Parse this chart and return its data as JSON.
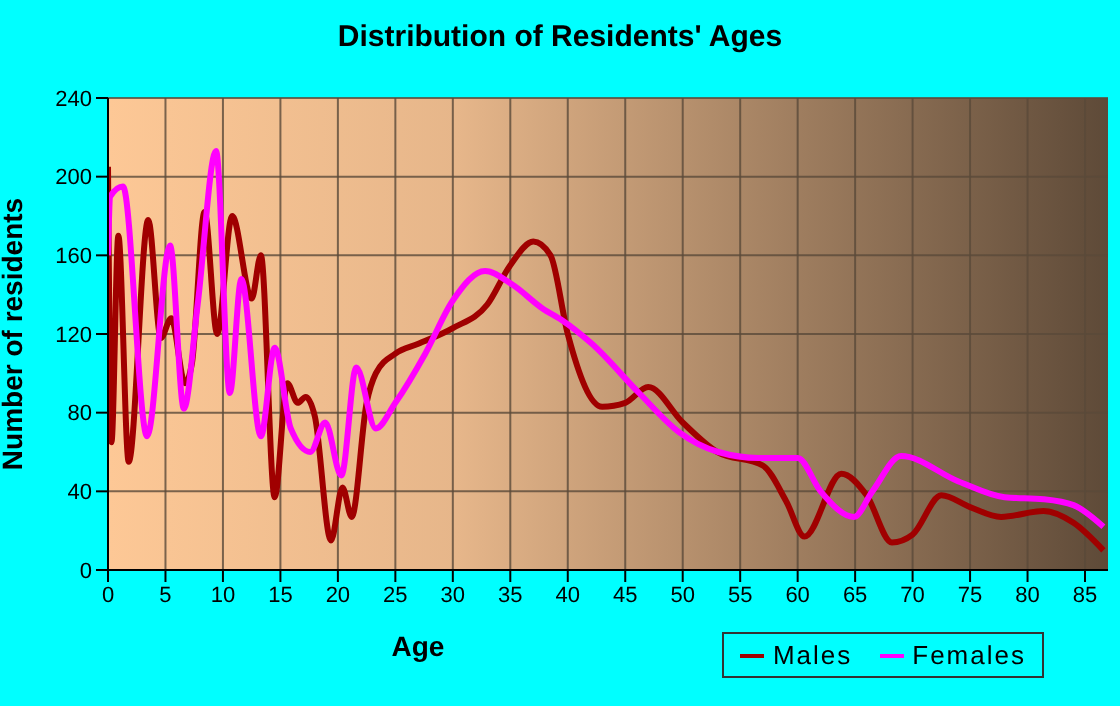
{
  "chart_data": {
    "type": "line",
    "title": "Distribution of Residents' Ages",
    "xlabel": "Age",
    "ylabel": "Number of residents",
    "xlim": [
      0,
      87
    ],
    "xticks": [
      0,
      5,
      10,
      15,
      20,
      25,
      30,
      35,
      40,
      45,
      50,
      55,
      60,
      65,
      70,
      75,
      80,
      85
    ],
    "ylim": [
      0,
      240
    ],
    "yticks": [
      0,
      40,
      80,
      120,
      160,
      200,
      240
    ],
    "grid": true,
    "legend": "bottom right",
    "marker": "none",
    "line_style": "solid",
    "series": [
      {
        "name": "Males",
        "color": "#a00000",
        "x": [
          0,
          0.3,
          0.9,
          1.8,
          3.5,
          4.6,
          5.5,
          6.7,
          7.3,
          8.4,
          9.5,
          10.8,
          12.5,
          13.3,
          14.5,
          15.6,
          16.5,
          17.2,
          18,
          19.4,
          20.4,
          21.2,
          22.5,
          23.3,
          25,
          27,
          30,
          33,
          35,
          37,
          38.5,
          40,
          43,
          45,
          47,
          50,
          53,
          57,
          59,
          60.6,
          63.8,
          66,
          68.2,
          70,
          72.5,
          75,
          77.7,
          81.4,
          84,
          86.6
        ],
        "values": [
          205,
          65,
          170,
          55,
          178,
          118,
          128,
          95,
          105,
          182,
          120,
          180,
          138,
          160,
          37,
          95,
          85,
          88,
          78,
          15,
          42,
          27,
          85,
          100,
          110,
          115,
          123,
          135,
          155,
          167,
          160,
          120,
          83,
          85,
          93,
          75,
          60,
          53,
          35,
          17,
          49,
          38,
          14,
          18,
          38,
          32,
          27,
          30,
          24,
          10
        ]
      },
      {
        "name": "Females",
        "color": "#ff00ff",
        "x": [
          0,
          0.2,
          1.3,
          3.4,
          5.4,
          6.6,
          7.8,
          9.4,
          10.6,
          11.6,
          13.3,
          14.5,
          15.9,
          17.6,
          18.9,
          20.3,
          21.6,
          23.3,
          25,
          27.6,
          30,
          32.8,
          35.2,
          37.8,
          39.5,
          42.1,
          46.2,
          49.7,
          53.1,
          56.6,
          60,
          62,
          64.9,
          66.5,
          69,
          74,
          78,
          81.4,
          84,
          86.6
        ],
        "values": [
          160,
          190,
          195,
          68,
          165,
          82,
          135,
          213,
          90,
          148,
          68,
          113,
          72,
          60,
          75,
          48,
          103,
          72,
          85,
          110,
          137,
          152,
          145,
          133,
          127,
          115,
          90,
          70,
          60,
          57,
          57,
          40,
          27,
          40,
          58,
          45,
          37,
          36,
          33,
          22
        ]
      }
    ]
  }
}
